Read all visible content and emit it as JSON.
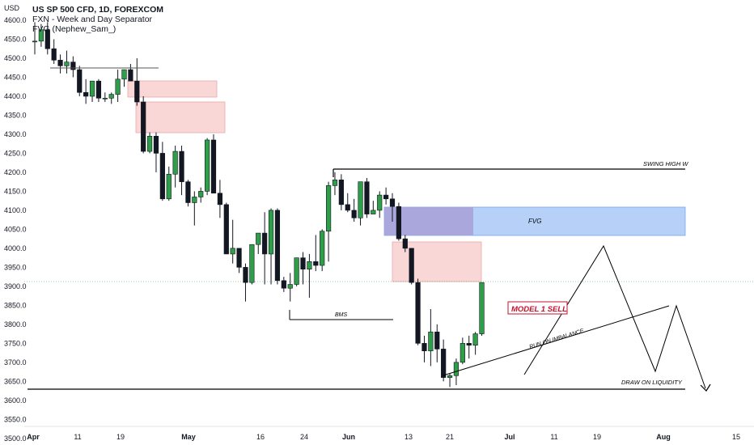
{
  "legend": {
    "title": "US SP 500 CFD, 1D, FOREXCOM",
    "indicator1": "FXN - Week and Day Separator",
    "indicator2": "FVG (Nephew_Sam_)"
  },
  "axis": {
    "currency": "USD",
    "price_ticks": [
      "4600.0",
      "4550.0",
      "4500.0",
      "4450.0",
      "4400.0",
      "4350.0",
      "4300.0",
      "4250.0",
      "4200.0",
      "4150.0",
      "4100.0",
      "4050.0",
      "4000.0",
      "3950.0",
      "3900.0",
      "3850.0",
      "3800.0",
      "3750.0",
      "3700.0",
      "3650.0",
      "3600.0",
      "3550.0",
      "3500.0"
    ],
    "time_ticks": [
      "Apr",
      "11",
      "19",
      "May",
      "16",
      "24",
      "Jun",
      "13",
      "21",
      "Jul",
      "11",
      "19",
      "Aug",
      "15"
    ]
  },
  "annotations": {
    "swing_high": "SWING HIGH W",
    "fvg": "FVG",
    "model": "MODEL 1 SELL",
    "bms": "BMS",
    "run_imbalance": "RUN ON IMBALANCE",
    "draw_liquidity": "DRAW ON LIQUIDITY"
  },
  "colors": {
    "bull": "#2e9e48",
    "bear": "#131722",
    "pink_zone": "#f7c6c6",
    "fvg_blue": "#a9c8f7",
    "fvg_purple": "#a8a2d8",
    "model_text": "#c8102e"
  },
  "chart_data": {
    "type": "candlestick",
    "symbol": "US SP 500 CFD",
    "interval": "1D",
    "ylim": [
      3500,
      4620
    ],
    "candles": [
      {
        "date": "04-01",
        "o": 4545,
        "h": 4595,
        "l": 4510,
        "c": 4545
      },
      {
        "date": "04-04",
        "o": 4545,
        "h": 4590,
        "l": 4530,
        "c": 4575
      },
      {
        "date": "04-05",
        "o": 4575,
        "h": 4595,
        "l": 4510,
        "c": 4525
      },
      {
        "date": "04-06",
        "o": 4525,
        "h": 4550,
        "l": 4485,
        "c": 4495
      },
      {
        "date": "04-07",
        "o": 4495,
        "h": 4510,
        "l": 4460,
        "c": 4480
      },
      {
        "date": "04-08",
        "o": 4480,
        "h": 4520,
        "l": 4460,
        "c": 4490
      },
      {
        "date": "04-11",
        "o": 4490,
        "h": 4505,
        "l": 4450,
        "c": 4470
      },
      {
        "date": "04-12",
        "o": 4470,
        "h": 4480,
        "l": 4400,
        "c": 4410
      },
      {
        "date": "04-13",
        "o": 4410,
        "h": 4445,
        "l": 4380,
        "c": 4400
      },
      {
        "date": "04-14",
        "o": 4400,
        "h": 4440,
        "l": 4385,
        "c": 4440
      },
      {
        "date": "04-18",
        "o": 4440,
        "h": 4445,
        "l": 4385,
        "c": 4395
      },
      {
        "date": "04-19",
        "o": 4395,
        "h": 4410,
        "l": 4385,
        "c": 4395
      },
      {
        "date": "04-20",
        "o": 4395,
        "h": 4410,
        "l": 4380,
        "c": 4405
      },
      {
        "date": "04-21",
        "o": 4405,
        "h": 4470,
        "l": 4385,
        "c": 4445
      },
      {
        "date": "04-22",
        "o": 4445,
        "h": 4470,
        "l": 4425,
        "c": 4470
      },
      {
        "date": "04-25",
        "o": 4470,
        "h": 4485,
        "l": 4440,
        "c": 4440
      },
      {
        "date": "04-26",
        "o": 4440,
        "h": 4500,
        "l": 4375,
        "c": 4385
      },
      {
        "date": "04-27",
        "o": 4385,
        "h": 4400,
        "l": 4250,
        "c": 4255
      },
      {
        "date": "04-28",
        "o": 4255,
        "h": 4305,
        "l": 4250,
        "c": 4295
      },
      {
        "date": "04-29",
        "o": 4295,
        "h": 4305,
        "l": 4200,
        "c": 4250
      },
      {
        "date": "05-02",
        "o": 4250,
        "h": 4280,
        "l": 4125,
        "c": 4130
      },
      {
        "date": "05-03",
        "o": 4130,
        "h": 4215,
        "l": 4125,
        "c": 4195
      },
      {
        "date": "05-04",
        "o": 4195,
        "h": 4270,
        "l": 4160,
        "c": 4255
      },
      {
        "date": "05-05",
        "o": 4255,
        "h": 4270,
        "l": 4140,
        "c": 4175
      },
      {
        "date": "05-06",
        "o": 4175,
        "h": 4180,
        "l": 4110,
        "c": 4120
      },
      {
        "date": "05-09",
        "o": 4120,
        "h": 4150,
        "l": 4060,
        "c": 4135
      },
      {
        "date": "05-10",
        "o": 4135,
        "h": 4160,
        "l": 4120,
        "c": 4150
      },
      {
        "date": "05-11",
        "o": 4150,
        "h": 4290,
        "l": 4140,
        "c": 4285
      },
      {
        "date": "05-12",
        "o": 4285,
        "h": 4300,
        "l": 4150,
        "c": 4145
      },
      {
        "date": "05-13",
        "o": 4145,
        "h": 4180,
        "l": 4080,
        "c": 4115
      },
      {
        "date": "05-16",
        "o": 4115,
        "h": 4120,
        "l": 3985,
        "c": 3985
      },
      {
        "date": "05-17",
        "o": 3985,
        "h": 4075,
        "l": 3960,
        "c": 4000
      },
      {
        "date": "05-18",
        "o": 4000,
        "h": 4000,
        "l": 3935,
        "c": 3950
      },
      {
        "date": "05-19",
        "o": 3950,
        "h": 3960,
        "l": 3860,
        "c": 3910
      },
      {
        "date": "05-20",
        "o": 3910,
        "h": 4010,
        "l": 3905,
        "c": 4010
      },
      {
        "date": "05-23",
        "o": 4010,
        "h": 4040,
        "l": 3985,
        "c": 4040
      },
      {
        "date": "05-24",
        "o": 4040,
        "h": 4095,
        "l": 3905,
        "c": 3985
      },
      {
        "date": "05-25",
        "o": 3985,
        "h": 4105,
        "l": 3905,
        "c": 4100
      },
      {
        "date": "05-26",
        "o": 4100,
        "h": 4105,
        "l": 3905,
        "c": 3915
      },
      {
        "date": "05-27",
        "o": 3915,
        "h": 3925,
        "l": 3885,
        "c": 3895
      },
      {
        "date": "05-31",
        "o": 3895,
        "h": 3935,
        "l": 3860,
        "c": 3905
      },
      {
        "date": "06-01",
        "o": 3905,
        "h": 3975,
        "l": 3900,
        "c": 3975
      },
      {
        "date": "06-02",
        "o": 3975,
        "h": 3990,
        "l": 3905,
        "c": 3945
      },
      {
        "date": "06-03",
        "o": 3945,
        "h": 3985,
        "l": 3870,
        "c": 3965
      },
      {
        "date": "06-06",
        "o": 3965,
        "h": 4035,
        "l": 3940,
        "c": 3955
      },
      {
        "date": "06-07",
        "o": 3955,
        "h": 4050,
        "l": 3940,
        "c": 4045
      },
      {
        "date": "06-08",
        "o": 4045,
        "h": 4175,
        "l": 3965,
        "c": 4165
      },
      {
        "date": "06-09",
        "o": 4165,
        "h": 4200,
        "l": 4140,
        "c": 4180
      },
      {
        "date": "06-10",
        "o": 4180,
        "h": 4195,
        "l": 4100,
        "c": 4115
      },
      {
        "date": "06-13",
        "o": 4115,
        "h": 4145,
        "l": 4095,
        "c": 4100
      },
      {
        "date": "06-14",
        "o": 4100,
        "h": 4130,
        "l": 4070,
        "c": 4080
      },
      {
        "date": "06-15",
        "o": 4080,
        "h": 4175,
        "l": 4060,
        "c": 4175
      },
      {
        "date": "06-16",
        "o": 4175,
        "h": 4185,
        "l": 4080,
        "c": 4090
      },
      {
        "date": "06-17",
        "o": 4090,
        "h": 4125,
        "l": 4090,
        "c": 4100
      },
      {
        "date": "06-20",
        "o": 4100,
        "h": 4150,
        "l": 4080,
        "c": 4140
      },
      {
        "date": "06-21",
        "o": 4140,
        "h": 4160,
        "l": 4115,
        "c": 4130
      },
      {
        "date": "06-22",
        "o": 4130,
        "h": 4145,
        "l": 4070,
        "c": 4110
      },
      {
        "date": "06-23",
        "o": 4110,
        "h": 4120,
        "l": 4020,
        "c": 4025
      },
      {
        "date": "06-24",
        "o": 4025,
        "h": 4035,
        "l": 3990,
        "c": 4000
      },
      {
        "date": "06-27",
        "o": 4000,
        "h": 4000,
        "l": 3905,
        "c": 3910
      },
      {
        "date": "06-28",
        "o": 3910,
        "h": 3920,
        "l": 3745,
        "c": 3750
      },
      {
        "date": "06-29",
        "o": 3750,
        "h": 3770,
        "l": 3700,
        "c": 3730
      },
      {
        "date": "06-30",
        "o": 3730,
        "h": 3840,
        "l": 3690,
        "c": 3780
      },
      {
        "date": "07-01",
        "o": 3780,
        "h": 3800,
        "l": 3700,
        "c": 3735
      },
      {
        "date": "07-05",
        "o": 3735,
        "h": 3760,
        "l": 3650,
        "c": 3660
      },
      {
        "date": "07-06",
        "o": 3660,
        "h": 3670,
        "l": 3635,
        "c": 3665
      },
      {
        "date": "07-07",
        "o": 3665,
        "h": 3710,
        "l": 3640,
        "c": 3700
      },
      {
        "date": "07-08",
        "o": 3700,
        "h": 3765,
        "l": 3695,
        "c": 3750
      },
      {
        "date": "07-11",
        "o": 3750,
        "h": 3770,
        "l": 3710,
        "c": 3745
      },
      {
        "date": "07-12",
        "o": 3745,
        "h": 3780,
        "l": 3720,
        "c": 3775
      },
      {
        "date": "07-13",
        "o": 3775,
        "h": 3910,
        "l": 3770,
        "c": 3910
      }
    ]
  }
}
